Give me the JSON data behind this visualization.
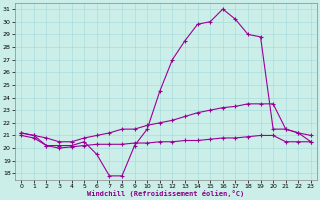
{
  "xlabel": "Windchill (Refroidissement éolien,°C)",
  "background_color": "#cceee8",
  "grid_color": "#aadddd",
  "line_color": "#990099",
  "xlim": [
    -0.5,
    23.5
  ],
  "ylim": [
    17.5,
    31.5
  ],
  "xticks": [
    0,
    1,
    2,
    3,
    4,
    5,
    6,
    7,
    8,
    9,
    10,
    11,
    12,
    13,
    14,
    15,
    16,
    17,
    18,
    19,
    20,
    21,
    22,
    23
  ],
  "yticks": [
    18,
    19,
    20,
    21,
    22,
    23,
    24,
    25,
    26,
    27,
    28,
    29,
    30,
    31
  ],
  "series1_x": [
    0,
    1,
    2,
    3,
    4,
    5,
    6,
    7,
    8,
    9,
    10,
    11,
    12,
    13,
    14,
    15,
    16,
    17,
    18,
    19,
    20,
    21,
    22,
    23
  ],
  "series1_y": [
    21.0,
    20.8,
    20.2,
    20.0,
    20.1,
    20.2,
    20.3,
    20.3,
    20.3,
    20.4,
    20.4,
    20.5,
    20.5,
    20.6,
    20.6,
    20.7,
    20.8,
    20.8,
    20.9,
    21.0,
    21.0,
    20.5,
    20.5,
    20.5
  ],
  "series2_x": [
    0,
    1,
    2,
    3,
    4,
    5,
    6,
    7,
    8,
    9,
    10,
    11,
    12,
    13,
    14,
    15,
    16,
    17,
    18,
    19,
    20,
    21,
    22,
    23
  ],
  "series2_y": [
    21.2,
    21.0,
    20.8,
    20.5,
    20.5,
    20.8,
    21.0,
    21.2,
    21.5,
    21.5,
    21.8,
    22.0,
    22.2,
    22.5,
    22.8,
    23.0,
    23.2,
    23.3,
    23.5,
    23.5,
    23.5,
    21.5,
    21.2,
    21.0
  ],
  "series3_x": [
    0,
    1,
    2,
    3,
    4,
    5,
    6,
    7,
    8,
    9,
    10,
    11,
    12,
    13,
    14,
    15,
    16,
    17,
    18,
    19,
    20,
    21,
    22,
    23
  ],
  "series3_y": [
    21.2,
    21.0,
    20.2,
    20.2,
    20.2,
    20.5,
    19.5,
    17.8,
    17.8,
    20.2,
    21.5,
    24.5,
    27.0,
    28.5,
    29.8,
    30.0,
    31.0,
    30.2,
    29.0,
    28.8,
    21.5,
    21.5,
    21.2,
    20.5
  ]
}
